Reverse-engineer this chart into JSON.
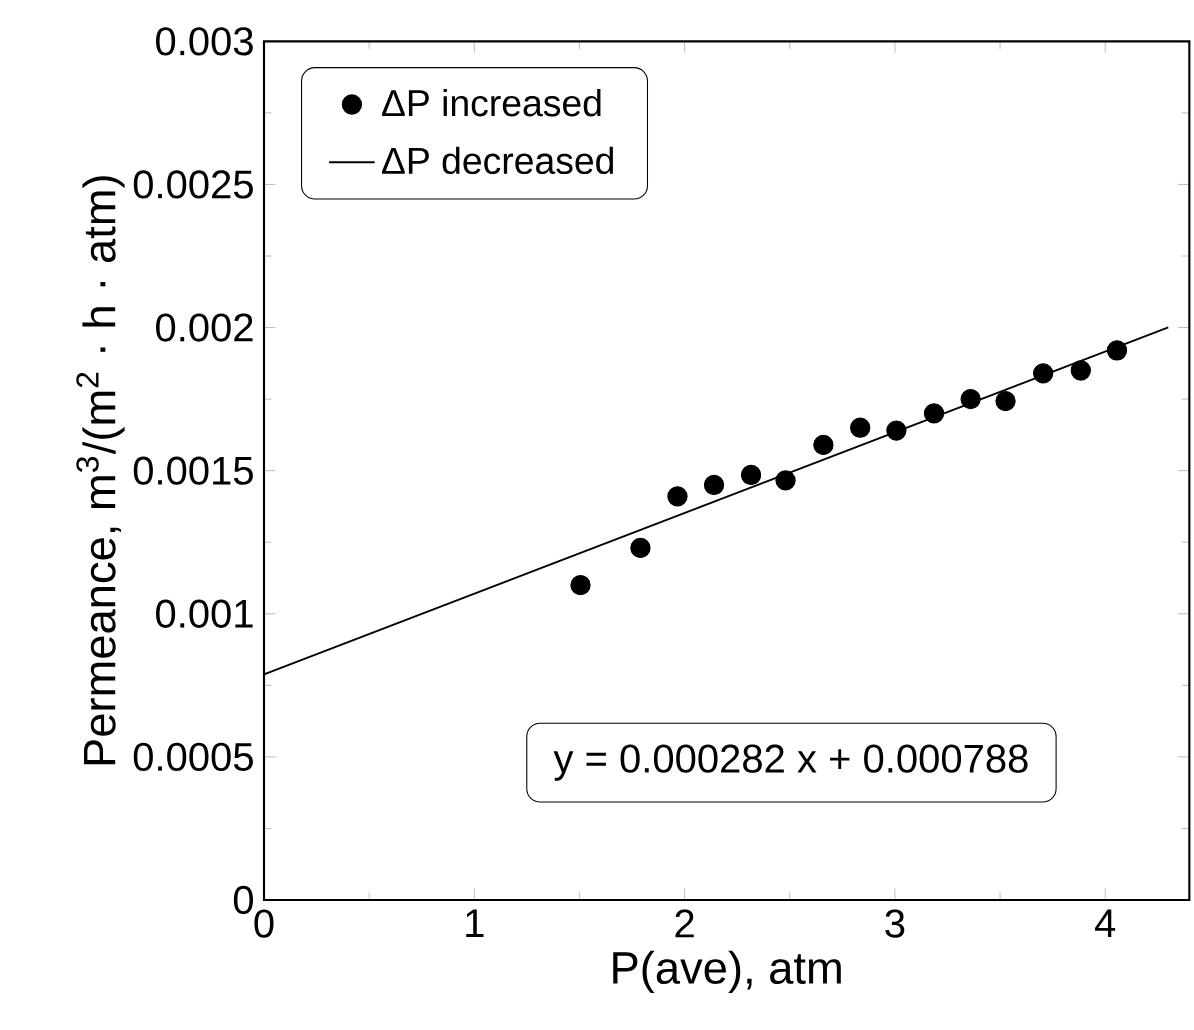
{
  "chart_data": {
    "type": "scatter",
    "xlabel": "P(ave), atm",
    "ylabel": "Permeance, m$^{3}$/(m$^{2}$ · h · atm)",
    "xlim": [
      0,
      4.4
    ],
    "xticks": [
      0,
      1,
      2,
      3,
      4
    ],
    "ylim": [
      0,
      0.003
    ],
    "yticks": [
      0,
      0.0005,
      0.001,
      0.0015,
      0.002,
      0.0025,
      0.003
    ],
    "legend": "top left",
    "grid": false,
    "annotations": [
      "y = 0.000282 x + 0.000788"
    ],
    "series": [
      {
        "name": "ΔP increased",
        "marker": "circle",
        "color": "#000000",
        "x": [
          1.505,
          1.79,
          1.966,
          2.14,
          2.316,
          2.48,
          2.66,
          2.835,
          3.007,
          3.186,
          3.36,
          3.526,
          3.705,
          3.884,
          4.056
        ],
        "values": [
          0.0011,
          0.00123,
          0.00141,
          0.00145,
          0.001485,
          0.001466,
          0.00159,
          0.00165,
          0.00164,
          0.0017,
          0.00175,
          0.001743,
          0.00184,
          0.00185,
          0.00192
        ]
      },
      {
        "name": "ΔP decreased",
        "type": "line",
        "marker": "none",
        "line_style": "solid",
        "color": "#000000",
        "x": [
          0,
          4.3
        ],
        "values": [
          0.000788,
          0.002001
        ]
      }
    ]
  }
}
